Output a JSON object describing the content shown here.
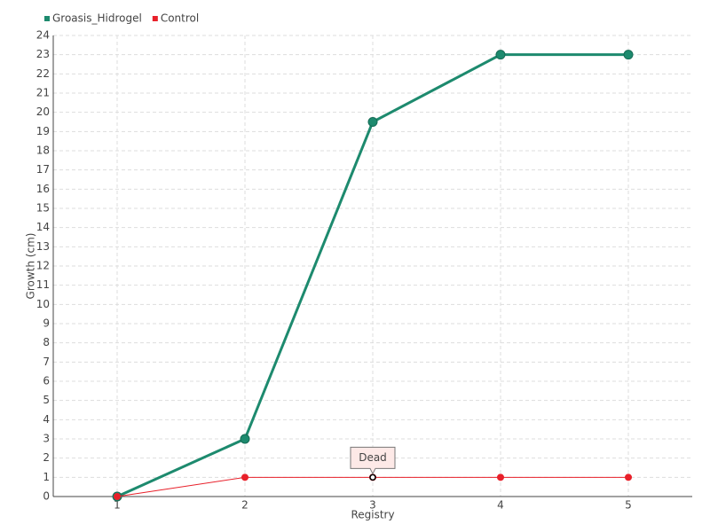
{
  "chart_data": {
    "type": "line",
    "x_label": "Registry",
    "y_label": "Growth (cm)",
    "categories": [
      "1",
      "2",
      "3",
      "4",
      "5"
    ],
    "series": [
      {
        "name": "Groasis_Hidrogel",
        "color": "#1d8a6e",
        "values": [
          0,
          3,
          19.5,
          23,
          23
        ]
      },
      {
        "name": "Control",
        "color": "#e8202a",
        "values": [
          0,
          1,
          1,
          1,
          1
        ]
      }
    ],
    "annotations": [
      {
        "label": "Dead",
        "x": "3",
        "y": 1
      }
    ],
    "ylim": [
      0,
      24
    ],
    "yticks": [
      0,
      1,
      2,
      3,
      4,
      5,
      6,
      7,
      8,
      9,
      10,
      11,
      12,
      13,
      14,
      15,
      16,
      17,
      18,
      19,
      20,
      21,
      22,
      23,
      24
    ],
    "grid": true,
    "legend": "top-left"
  }
}
